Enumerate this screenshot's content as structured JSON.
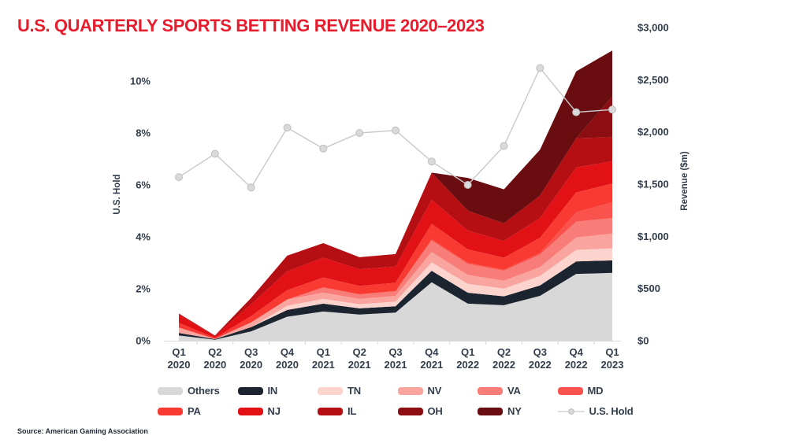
{
  "page": {
    "title": "U.S. QUARTERLY SPORTS BETTING REVENUE 2020–2023",
    "source": "Source: American Gaming Association"
  },
  "colors": {
    "title": "#e71c2c",
    "axis_text": "#333e4c",
    "axis_line": "#d9d9d9",
    "hold_line": "#c9c9c9",
    "hold_marker_fill": "#d9d9d9",
    "hold_marker_stroke": "#bfbfbf"
  },
  "chart_data": {
    "type": "area",
    "subtype": "stacked-area-with-line",
    "title": "U.S. QUARTERLY SPORTS BETTING REVENUE 2020–2023",
    "grid": false,
    "legend_position": "bottom",
    "categories": [
      "Q1 2020",
      "Q2 2020",
      "Q3 2020",
      "Q4 2020",
      "Q1 2021",
      "Q2 2021",
      "Q3 2021",
      "Q4 2021",
      "Q1 2022",
      "Q2 2022",
      "Q3 2022",
      "Q4 2022",
      "Q1 2023"
    ],
    "left_axis": {
      "label": "U.S. Hold",
      "unit": "%",
      "tick_values": [
        0,
        2,
        4,
        6,
        8,
        10
      ],
      "tick_labels": [
        "0%",
        "2%",
        "4%",
        "6%",
        "8%",
        "10%"
      ],
      "range": [
        0,
        12
      ]
    },
    "right_axis": {
      "label": "Revenue ($m)",
      "unit": "$m",
      "tick_values": [
        0,
        500,
        1000,
        1500,
        2000,
        2500,
        3000
      ],
      "tick_labels": [
        "$0",
        "$500",
        "$1,000",
        "$1,500",
        "$2,000",
        "$2,500",
        "$3,000"
      ],
      "range": [
        0,
        3000
      ]
    },
    "series": [
      {
        "name": "Others",
        "color": "#d8d8d8",
        "axis": "right",
        "values": [
          50,
          10,
          90,
          230,
          280,
          250,
          270,
          560,
          355,
          340,
          430,
          640,
          650
        ]
      },
      {
        "name": "IN",
        "color": "#1c2430",
        "axis": "right",
        "values": [
          25,
          5,
          40,
          65,
          75,
          60,
          60,
          110,
          105,
          85,
          100,
          120,
          120
        ]
      },
      {
        "name": "TN",
        "color": "#fcd3cd",
        "axis": "right",
        "values": [
          0,
          0,
          0,
          40,
          45,
          40,
          45,
          80,
          85,
          75,
          90,
          110,
          115
        ]
      },
      {
        "name": "NV",
        "color": "#f9a49e",
        "axis": "right",
        "values": [
          50,
          3,
          45,
          60,
          60,
          50,
          55,
          100,
          85,
          75,
          85,
          120,
          140
        ]
      },
      {
        "name": "VA",
        "color": "#f87d78",
        "axis": "right",
        "values": [
          0,
          0,
          0,
          0,
          50,
          45,
          45,
          110,
          105,
          95,
          120,
          150,
          150
        ]
      },
      {
        "name": "MD",
        "color": "#fa524c",
        "axis": "right",
        "values": [
          0,
          0,
          0,
          0,
          0,
          0,
          0,
          10,
          10,
          10,
          15,
          90,
          150
        ]
      },
      {
        "name": "PA",
        "color": "#f93a32",
        "axis": "right",
        "values": [
          45,
          8,
          60,
          90,
          95,
          80,
          80,
          150,
          130,
          115,
          145,
          190,
          180
        ]
      },
      {
        "name": "NJ",
        "color": "#e11116",
        "axis": "right",
        "values": [
          80,
          18,
          115,
          180,
          190,
          160,
          155,
          230,
          180,
          160,
          190,
          240,
          215
        ]
      },
      {
        "name": "IL",
        "color": "#b50e13",
        "axis": "right",
        "values": [
          10,
          6,
          60,
          150,
          140,
          115,
          120,
          260,
          190,
          170,
          215,
          280,
          230
        ]
      },
      {
        "name": "OH",
        "color": "#8d0e12",
        "axis": "right",
        "values": [
          0,
          0,
          0,
          0,
          0,
          0,
          0,
          0,
          0,
          0,
          0,
          0,
          390
        ]
      },
      {
        "name": "NY",
        "color": "#690d11",
        "axis": "right",
        "values": [
          0,
          0,
          0,
          0,
          0,
          0,
          0,
          0,
          315,
          325,
          440,
          640,
          440
        ]
      }
    ],
    "line_series": {
      "name": "U.S. Hold",
      "axis": "left",
      "values": [
        6.3,
        7.2,
        5.9,
        8.2,
        7.4,
        8.0,
        8.1,
        6.9,
        6.0,
        7.5,
        10.5,
        8.8,
        8.9
      ]
    }
  }
}
